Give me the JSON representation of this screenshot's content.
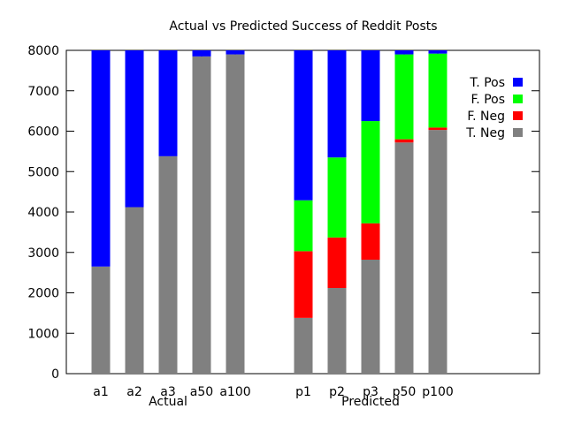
{
  "chart_data": {
    "type": "bar",
    "stacked": true,
    "title": "Actual vs Predicted Success of Reddit Posts",
    "xlabel": "",
    "ylabel": "",
    "ylim": [
      0,
      8000
    ],
    "yticks": [
      "0",
      "1000",
      "2000",
      "3000",
      "4000",
      "5000",
      "6000",
      "7000",
      "8000"
    ],
    "grid": false,
    "legend_position": "top-right",
    "categories": [
      "a1",
      "a2",
      "a3",
      "a50",
      "a100",
      "p1",
      "p2",
      "p3",
      "p50",
      "p100"
    ],
    "groups": [
      {
        "label": "Actual",
        "categories": [
          "a1",
          "a2",
          "a3",
          "a50",
          "a100"
        ]
      },
      {
        "label": "Predicted",
        "categories": [
          "p1",
          "p2",
          "p3",
          "p50",
          "p100"
        ]
      }
    ],
    "series": [
      {
        "name": "T. Neg",
        "color": "#808080",
        "values": [
          2650,
          4120,
          5380,
          7850,
          7900,
          1380,
          2120,
          2820,
          5720,
          6030
        ]
      },
      {
        "name": "F. Neg",
        "color": "#ff0000",
        "values": [
          0,
          0,
          0,
          0,
          0,
          1650,
          1250,
          900,
          80,
          60
        ]
      },
      {
        "name": "F. Pos",
        "color": "#00ff00",
        "values": [
          0,
          0,
          0,
          0,
          0,
          1260,
          1980,
          2530,
          2100,
          1830
        ]
      },
      {
        "name": "T. Pos",
        "color": "#0000ff",
        "values": [
          5350,
          3880,
          2620,
          150,
          100,
          3710,
          2650,
          1750,
          100,
          80
        ]
      }
    ],
    "legend_order": [
      "T. Pos",
      "F. Pos",
      "F. Neg",
      "T. Neg"
    ]
  }
}
